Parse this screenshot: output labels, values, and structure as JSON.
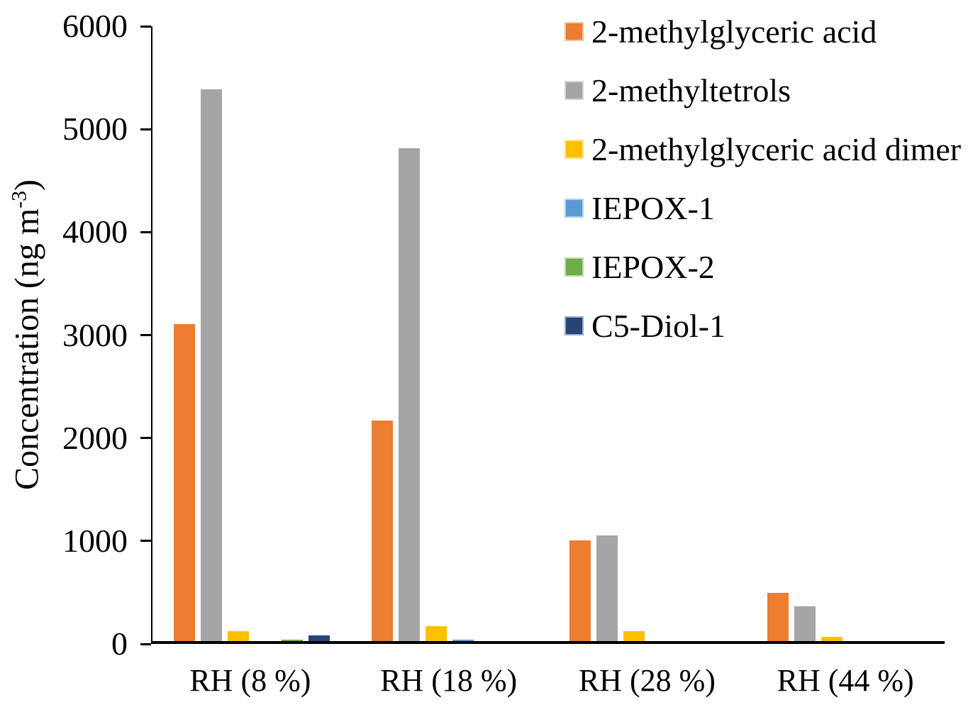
{
  "figure": {
    "background_color": "#FFFFFF",
    "text_color": "#000000",
    "axis_color": "#000000"
  },
  "chart_data": {
    "type": "bar",
    "title": "",
    "xlabel": "",
    "ylabel": "Concentration (ng m-3)",
    "ylabel_parts": {
      "main": "Concentration (ng m",
      "superscript": "-3",
      "end": ")"
    },
    "categories": [
      "RH (8 %)",
      "RH (18 %)",
      "RH (28 %)",
      "RH (44 %)"
    ],
    "series": [
      {
        "name": "2-methylglyceric acid",
        "color": "#ED7D31",
        "values": [
          3080,
          2140,
          980,
          470
        ]
      },
      {
        "name": "2-methyltetrols",
        "color": "#A5A5A5",
        "values": [
          5360,
          4790,
          1030,
          340
        ]
      },
      {
        "name": "2-methylglyceric acid dimer",
        "color": "#FFC000",
        "values": [
          95,
          145,
          100,
          40
        ]
      },
      {
        "name": "IEPOX-1",
        "color": "#5B9BD5",
        "values": [
          0,
          15,
          0,
          0
        ]
      },
      {
        "name": "IEPOX-2",
        "color": "#70AD47",
        "values": [
          15,
          0,
          0,
          0
        ]
      },
      {
        "name": "C5-Diol-1",
        "color": "#264478",
        "values": [
          55,
          0,
          0,
          0
        ]
      }
    ],
    "ylim": [
      0,
      6000
    ],
    "yticks": [
      0,
      1000,
      2000,
      3000,
      4000,
      5000,
      6000
    ],
    "grid": false,
    "legend_position": "top-right"
  }
}
